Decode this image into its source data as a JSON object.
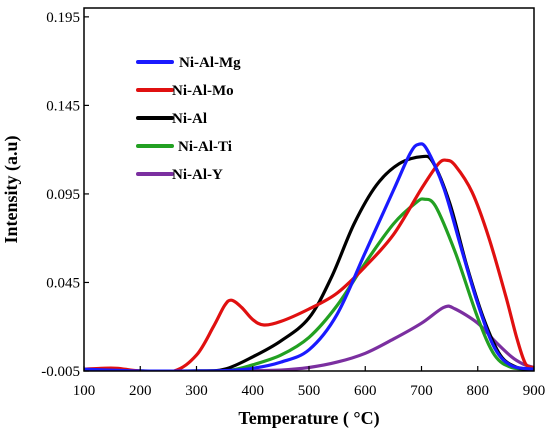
{
  "chart_data": {
    "type": "line",
    "title": "",
    "xlabel": "Temperature ( °C)",
    "ylabel": "Intensity (a.u)",
    "xlim": [
      100,
      900
    ],
    "ylim": [
      -0.005,
      0.2
    ],
    "x_ticks": [
      "100",
      "200",
      "300",
      "400",
      "500",
      "600",
      "700",
      "800",
      "900"
    ],
    "y_ticks": [
      "-0.005",
      "0.045",
      "0.095",
      "0.145",
      "0.195"
    ],
    "grid": false,
    "legend_position": "top-left",
    "series": [
      {
        "name": "Ni-Al-Mg",
        "color": "#1a1aff",
        "points": [
          [
            100,
            -0.004
          ],
          [
            200,
            -0.005
          ],
          [
            300,
            -0.005
          ],
          [
            350,
            -0.0048
          ],
          [
            400,
            -0.0035
          ],
          [
            450,
            0.0
          ],
          [
            500,
            0.007
          ],
          [
            550,
            0.027
          ],
          [
            600,
            0.062
          ],
          [
            650,
            0.097
          ],
          [
            680,
            0.118
          ],
          [
            695,
            0.123
          ],
          [
            710,
            0.12
          ],
          [
            740,
            0.098
          ],
          [
            770,
            0.065
          ],
          [
            800,
            0.033
          ],
          [
            830,
            0.008
          ],
          [
            860,
            -0.002
          ],
          [
            900,
            -0.004
          ]
        ]
      },
      {
        "name": "Ni-Al-Mo",
        "color": "#e01010",
        "points": [
          [
            100,
            -0.004
          ],
          [
            130,
            -0.0035
          ],
          [
            160,
            -0.0035
          ],
          [
            200,
            -0.005
          ],
          [
            260,
            -0.005
          ],
          [
            300,
            0.004
          ],
          [
            330,
            0.02
          ],
          [
            350,
            0.032
          ],
          [
            362,
            0.035
          ],
          [
            380,
            0.031
          ],
          [
            400,
            0.024
          ],
          [
            420,
            0.021
          ],
          [
            450,
            0.023
          ],
          [
            500,
            0.03
          ],
          [
            550,
            0.039
          ],
          [
            600,
            0.054
          ],
          [
            650,
            0.072
          ],
          [
            700,
            0.098
          ],
          [
            730,
            0.112
          ],
          [
            745,
            0.114
          ],
          [
            760,
            0.111
          ],
          [
            790,
            0.096
          ],
          [
            820,
            0.07
          ],
          [
            850,
            0.037
          ],
          [
            870,
            0.013
          ],
          [
            885,
            -0.001
          ],
          [
            900,
            -0.003
          ]
        ]
      },
      {
        "name": "Ni-Al",
        "color": "#000000",
        "points": [
          [
            100,
            -0.004
          ],
          [
            200,
            -0.005
          ],
          [
            300,
            -0.005
          ],
          [
            350,
            -0.004
          ],
          [
            400,
            0.003
          ],
          [
            450,
            0.012
          ],
          [
            500,
            0.025
          ],
          [
            540,
            0.048
          ],
          [
            580,
            0.078
          ],
          [
            620,
            0.1
          ],
          [
            660,
            0.112
          ],
          [
            700,
            0.116
          ],
          [
            720,
            0.113
          ],
          [
            750,
            0.09
          ],
          [
            780,
            0.055
          ],
          [
            810,
            0.025
          ],
          [
            840,
            0.004
          ],
          [
            870,
            -0.003
          ],
          [
            900,
            -0.004
          ]
        ]
      },
      {
        "name": "Ni-Al-Ti",
        "color": "#22a022",
        "points": [
          [
            100,
            -0.004
          ],
          [
            200,
            -0.005
          ],
          [
            300,
            -0.005
          ],
          [
            360,
            -0.0045
          ],
          [
            400,
            -0.0015
          ],
          [
            450,
            0.004
          ],
          [
            500,
            0.014
          ],
          [
            550,
            0.032
          ],
          [
            600,
            0.056
          ],
          [
            650,
            0.078
          ],
          [
            690,
            0.09
          ],
          [
            705,
            0.092
          ],
          [
            725,
            0.088
          ],
          [
            760,
            0.062
          ],
          [
            800,
            0.025
          ],
          [
            830,
            0.004
          ],
          [
            860,
            -0.003
          ],
          [
            900,
            -0.004
          ]
        ]
      },
      {
        "name": "Ni-Al-Y",
        "color": "#7b2fa0",
        "points": [
          [
            100,
            -0.004
          ],
          [
            200,
            -0.005
          ],
          [
            300,
            -0.005
          ],
          [
            400,
            -0.0048
          ],
          [
            450,
            -0.0045
          ],
          [
            500,
            -0.003
          ],
          [
            550,
            0.0
          ],
          [
            600,
            0.005
          ],
          [
            650,
            0.013
          ],
          [
            700,
            0.022
          ],
          [
            740,
            0.031
          ],
          [
            760,
            0.03
          ],
          [
            800,
            0.022
          ],
          [
            830,
            0.012
          ],
          [
            860,
            0.003
          ],
          [
            880,
            -0.001
          ],
          [
            900,
            -0.003
          ]
        ]
      }
    ]
  }
}
